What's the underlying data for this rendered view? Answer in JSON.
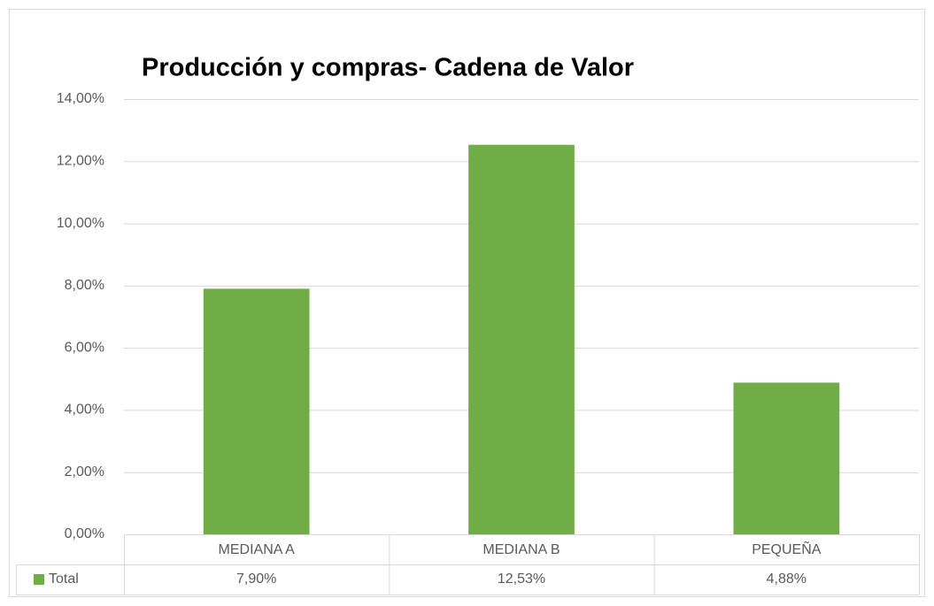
{
  "chart_data": {
    "type": "bar",
    "title": "Producción y compras- Cadena de Valor",
    "categories": [
      "MEDIANA A",
      "MEDIANA B",
      "PEQUEÑA"
    ],
    "series": [
      {
        "name": "Total",
        "color": "#70ad47",
        "values": [
          7.9,
          12.53,
          4.88
        ],
        "value_labels": [
          "7,90%",
          "12,53%",
          "4,88%"
        ]
      }
    ],
    "ylim": [
      0,
      14
    ],
    "yticks": [
      {
        "value": 0,
        "label": "0,00%"
      },
      {
        "value": 2,
        "label": "2,00%"
      },
      {
        "value": 4,
        "label": "4,00%"
      },
      {
        "value": 6,
        "label": "6,00%"
      },
      {
        "value": 8,
        "label": "8,00%"
      },
      {
        "value": 10,
        "label": "10,00%"
      },
      {
        "value": 12,
        "label": "12,00%"
      },
      {
        "value": 14,
        "label": "14,00%"
      }
    ],
    "grid": true
  }
}
